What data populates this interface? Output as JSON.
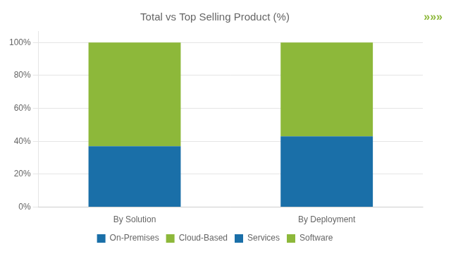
{
  "chart_data": {
    "type": "bar",
    "title": "Total vs Top Selling Product (%)",
    "categories": [
      "By Solution",
      "By Deployment"
    ],
    "stacked": true,
    "series": [
      {
        "name": "On-Premises",
        "color": "#1a6fa8",
        "values": [
          null,
          43
        ]
      },
      {
        "name": "Cloud-Based",
        "color": "#8db83a",
        "values": [
          null,
          57
        ]
      },
      {
        "name": "Services",
        "color": "#1a6fa8",
        "values": [
          37,
          null
        ]
      },
      {
        "name": "Software",
        "color": "#8db83a",
        "values": [
          63,
          null
        ]
      }
    ],
    "ylim": [
      0,
      107
    ],
    "yticks": [
      {
        "value": 0,
        "label": "0%"
      },
      {
        "value": 20,
        "label": "20%"
      },
      {
        "value": 40,
        "label": "40%"
      },
      {
        "value": 60,
        "label": "60%"
      },
      {
        "value": 80,
        "label": "80%"
      },
      {
        "value": 100,
        "label": "100%"
      }
    ],
    "grid": true,
    "legend": "bottom",
    "annotations": [
      {
        "text": "»»»",
        "color": "#8db83a"
      }
    ]
  }
}
